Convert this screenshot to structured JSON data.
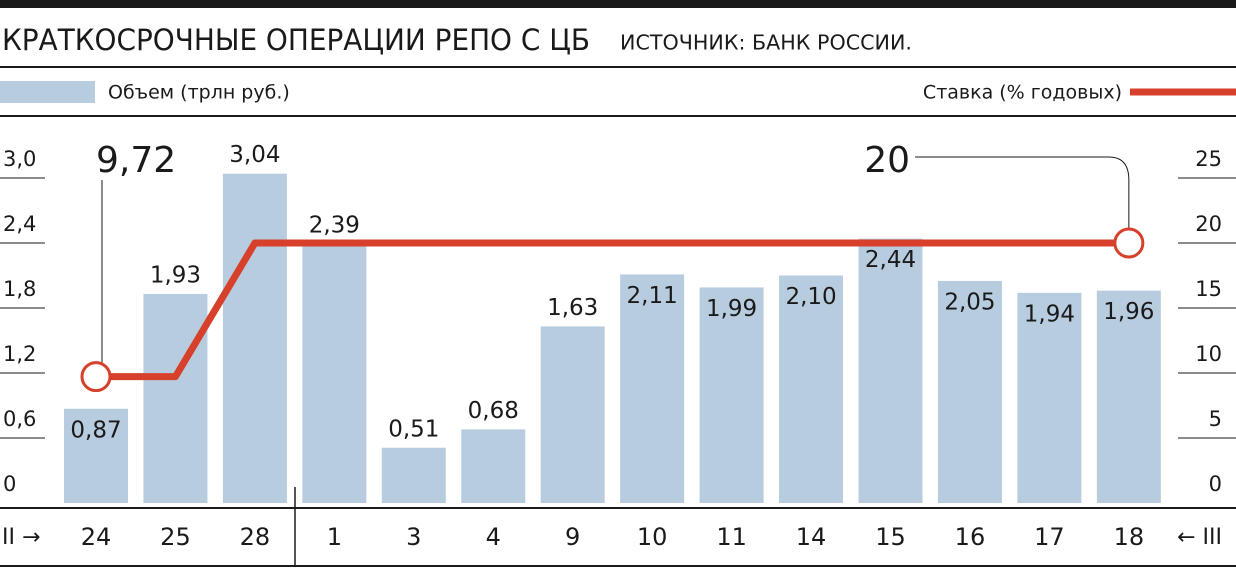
{
  "chart_data": {
    "type": "bar-line",
    "title": "КРАТКОСРОЧНЫЕ ОПЕРАЦИИ РЕПО С ЦБ",
    "subtitle": "ИСТОЧНИК: БАНК РОССИИ.",
    "categories": [
      "24",
      "25",
      "28",
      "1",
      "3",
      "4",
      "9",
      "10",
      "11",
      "14",
      "15",
      "16",
      "17",
      "18"
    ],
    "x_start_label": "II →",
    "x_end_label": "← III",
    "series": [
      {
        "name": "Объем (трлн руб.)",
        "color": "#b8cce0",
        "type": "bar",
        "values": [
          0.87,
          1.93,
          3.04,
          2.39,
          0.51,
          0.68,
          1.63,
          2.11,
          1.99,
          2.1,
          2.44,
          2.05,
          1.94,
          1.96
        ],
        "value_labels": [
          "0,87",
          "1,93",
          "3,04",
          "2,39",
          "0,51",
          "0,68",
          "1,63",
          "2,11",
          "1,99",
          "2,10",
          "2,44",
          "2,05",
          "1,94",
          "1,96"
        ]
      },
      {
        "name": "Ставка (% годовых)",
        "color": "#d7412b",
        "type": "line",
        "axis": "y2",
        "values": [
          9.72,
          9.72,
          20,
          20,
          20,
          20,
          20,
          20,
          20,
          20,
          20,
          20,
          20,
          20
        ],
        "value_labels": [
          "9,72",
          null,
          null,
          null,
          null,
          null,
          null,
          null,
          null,
          null,
          null,
          null,
          null,
          "20"
        ]
      }
    ],
    "ylim": [
      0,
      3.0
    ],
    "yticks": [
      0,
      {
        "value": 0.6,
        "label": "0,6"
      },
      {
        "value": 1.2,
        "label": "1,2"
      },
      {
        "value": 1.8,
        "label": "1,8"
      },
      {
        "value": 2.4,
        "label": "2,4"
      },
      {
        "value": 3.0,
        "label": "3,0"
      }
    ],
    "y2lim": [
      0,
      25
    ],
    "y2ticks": [
      0,
      5,
      10,
      15,
      20,
      25
    ]
  }
}
